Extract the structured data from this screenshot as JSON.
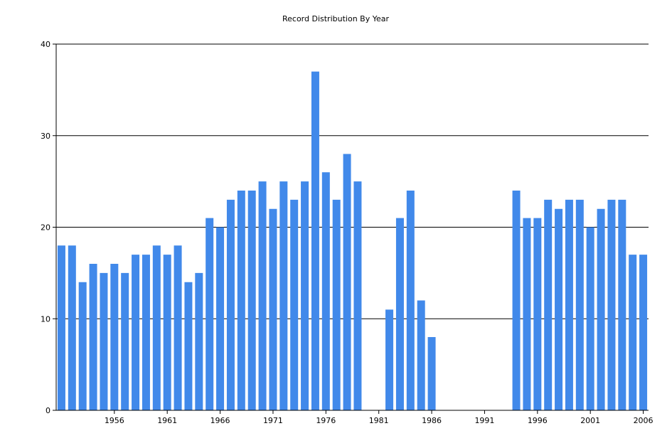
{
  "chart_data": {
    "type": "bar",
    "title": "Record Distribution By Year",
    "xlabel": "",
    "ylabel": "",
    "x_range": [
      1951,
      2007
    ],
    "ylim": [
      0,
      40
    ],
    "yticks": [
      0,
      10,
      20,
      30,
      40
    ],
    "xticks": [
      1956,
      1961,
      1966,
      1971,
      1976,
      1981,
      1986,
      1991,
      1996,
      2001,
      2006
    ],
    "grid": "horizontal",
    "bar_color": "#4189EA",
    "series": [
      {
        "x": [
          1951,
          1952,
          1953,
          1954,
          1955,
          1956,
          1957,
          1958,
          1959,
          1960,
          1961,
          1962,
          1963,
          1964,
          1965,
          1966,
          1967,
          1968,
          1969,
          1970,
          1971,
          1972,
          1973,
          1974,
          1975,
          1976,
          1977,
          1978,
          1979,
          1982,
          1983,
          1984,
          1985,
          1986,
          1994,
          1995,
          1996,
          1997,
          1998,
          1999,
          2000,
          2001,
          2002,
          2003,
          2004,
          2005,
          2006
        ],
        "values": [
          18,
          18,
          14,
          16,
          15,
          16,
          15,
          17,
          17,
          18,
          17,
          18,
          14,
          15,
          21,
          20,
          23,
          24,
          24,
          25,
          22,
          25,
          23,
          25,
          37,
          26,
          23,
          28,
          25,
          11,
          21,
          24,
          12,
          8,
          24,
          21,
          21,
          23,
          22,
          23,
          23,
          20,
          22,
          23,
          23,
          17,
          17
        ]
      }
    ]
  }
}
